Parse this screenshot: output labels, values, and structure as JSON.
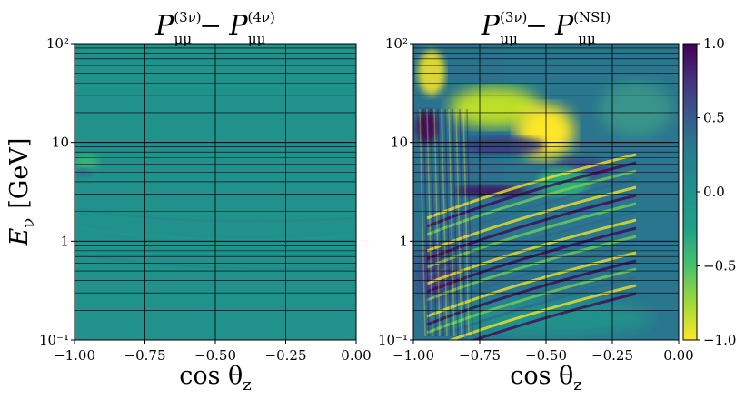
{
  "chart_data": [
    {
      "type": "heatmap",
      "title_base": "P",
      "title_sub": "μμ",
      "title_sup_left": "(3ν)",
      "title_minus": "−",
      "title_sup_right": "(4ν)",
      "xlabel": "cos θ",
      "xlabel_sub": "z",
      "ylabel": "E",
      "ylabel_sub": "ν",
      "ylabel_unit": "[GeV]",
      "x_range": [
        -1.0,
        0.0
      ],
      "y_range": [
        0.1,
        100
      ],
      "y_scale": "log",
      "x_ticks": [
        -1.0,
        -0.75,
        -0.5,
        -0.25,
        0.0
      ],
      "x_tick_labels": [
        "−1.00",
        "−0.75",
        "−0.50",
        "−0.25",
        "0.00"
      ],
      "y_tick_labels": [
        "10⁻¹",
        "1",
        "10",
        "10²"
      ],
      "grid": true,
      "colormap": "viridis_r",
      "value_range": [
        -1.0,
        1.0
      ],
      "dominant_value": 0.0
    },
    {
      "type": "heatmap",
      "title_base": "P",
      "title_sub": "μμ",
      "title_sup_left": "(3ν)",
      "title_minus": "−",
      "title_sup_right": "(NSI)",
      "xlabel": "cos θ",
      "xlabel_sub": "z",
      "x_range": [
        -1.0,
        0.0
      ],
      "y_range": [
        0.1,
        100
      ],
      "y_scale": "log",
      "x_ticks": [
        -1.0,
        -0.75,
        -0.5,
        -0.25,
        0.0
      ],
      "x_tick_labels": [
        "−1.00",
        "−0.75",
        "−0.50",
        "−0.25",
        "0.00"
      ],
      "y_tick_labels": [
        "10⁻¹",
        "1",
        "10",
        "10²"
      ],
      "grid": true,
      "colormap": "viridis_r",
      "value_range": [
        -1.0,
        1.0
      ],
      "features": [
        {
          "cos": -0.5,
          "E": 12,
          "value": -1.0
        },
        {
          "cos": -0.78,
          "E": 20,
          "value": -0.9
        },
        {
          "cos": -0.97,
          "E": 30,
          "value": 0.8
        },
        {
          "cos": -0.6,
          "E": 3.3,
          "value": 0.9
        },
        {
          "cos": -0.35,
          "E": 4.5,
          "value": 0.7
        }
      ]
    }
  ],
  "colorbar": {
    "min": -1.0,
    "max": 1.0,
    "ticks": [
      1.0,
      0.5,
      0.0,
      -0.5,
      -1.0
    ],
    "tick_labels": [
      "1.0",
      "0.5",
      "0.0",
      "−0.5",
      "−1.0"
    ],
    "colors": {
      "top": "#440154",
      "upper": "#3b528b",
      "mid": "#21918c",
      "lower": "#5ec962",
      "bottom": "#fde725"
    }
  }
}
